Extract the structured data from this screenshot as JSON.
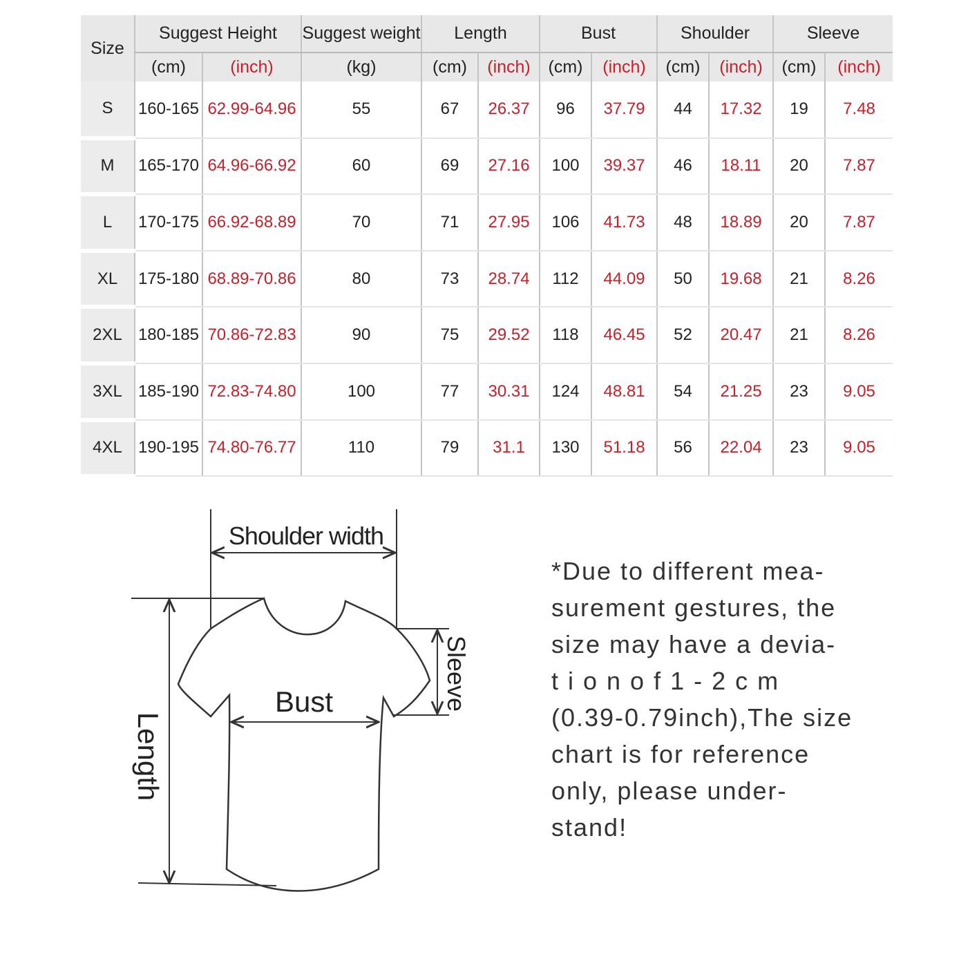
{
  "colors": {
    "header_bg": "#e8e8e8",
    "inch_text": "#c8202a",
    "text": "#222222"
  },
  "headers": {
    "size": "Size",
    "height": "Suggest Height",
    "weight": "Suggest weight",
    "length": "Length",
    "bust": "Bust",
    "shoulder": "Shoulder",
    "sleeve": "Sleeve",
    "cm": "(cm)",
    "inch": "(inch)",
    "kg": "(kg)"
  },
  "rows": [
    {
      "size": "S",
      "h_cm": "160-165",
      "h_in": "62.99-64.96",
      "kg": "55",
      "len_cm": "67",
      "len_in": "26.37",
      "bust_cm": "96",
      "bust_in": "37.79",
      "sh_cm": "44",
      "sh_in": "17.32",
      "sl_cm": "19",
      "sl_in": "7.48"
    },
    {
      "size": "M",
      "h_cm": "165-170",
      "h_in": "64.96-66.92",
      "kg": "60",
      "len_cm": "69",
      "len_in": "27.16",
      "bust_cm": "100",
      "bust_in": "39.37",
      "sh_cm": "46",
      "sh_in": "18.11",
      "sl_cm": "20",
      "sl_in": "7.87"
    },
    {
      "size": "L",
      "h_cm": "170-175",
      "h_in": "66.92-68.89",
      "kg": "70",
      "len_cm": "71",
      "len_in": "27.95",
      "bust_cm": "106",
      "bust_in": "41.73",
      "sh_cm": "48",
      "sh_in": "18.89",
      "sl_cm": "20",
      "sl_in": "7.87"
    },
    {
      "size": "XL",
      "h_cm": "175-180",
      "h_in": "68.89-70.86",
      "kg": "80",
      "len_cm": "73",
      "len_in": "28.74",
      "bust_cm": "112",
      "bust_in": "44.09",
      "sh_cm": "50",
      "sh_in": "19.68",
      "sl_cm": "21",
      "sl_in": "8.26"
    },
    {
      "size": "2XL",
      "h_cm": "180-185",
      "h_in": "70.86-72.83",
      "kg": "90",
      "len_cm": "75",
      "len_in": "29.52",
      "bust_cm": "118",
      "bust_in": "46.45",
      "sh_cm": "52",
      "sh_in": "20.47",
      "sl_cm": "21",
      "sl_in": "8.26"
    },
    {
      "size": "3XL",
      "h_cm": "185-190",
      "h_in": "72.83-74.80",
      "kg": "100",
      "len_cm": "77",
      "len_in": "30.31",
      "bust_cm": "124",
      "bust_in": "48.81",
      "sh_cm": "54",
      "sh_in": "21.25",
      "sl_cm": "23",
      "sl_in": "9.05"
    },
    {
      "size": "4XL",
      "h_cm": "190-195",
      "h_in": "74.80-76.77",
      "kg": "110",
      "len_cm": "79",
      "len_in": "31.1",
      "bust_cm": "130",
      "bust_in": "51.18",
      "sh_cm": "56",
      "sh_in": "22.04",
      "sl_cm": "23",
      "sl_in": "9.05"
    }
  ],
  "diagram": {
    "shoulder_width": "Shoulder width",
    "bust": "Bust",
    "sleeve": "Sleeve",
    "length": "Length"
  },
  "note_lines": [
    "*Due to different mea-",
    "surement gestures, the",
    "size may have a devia-",
    "t i o n   o f   1 - 2 c m",
    "(0.39-0.79inch),The size",
    "chart is for reference",
    "only, please under-",
    "stand!"
  ]
}
